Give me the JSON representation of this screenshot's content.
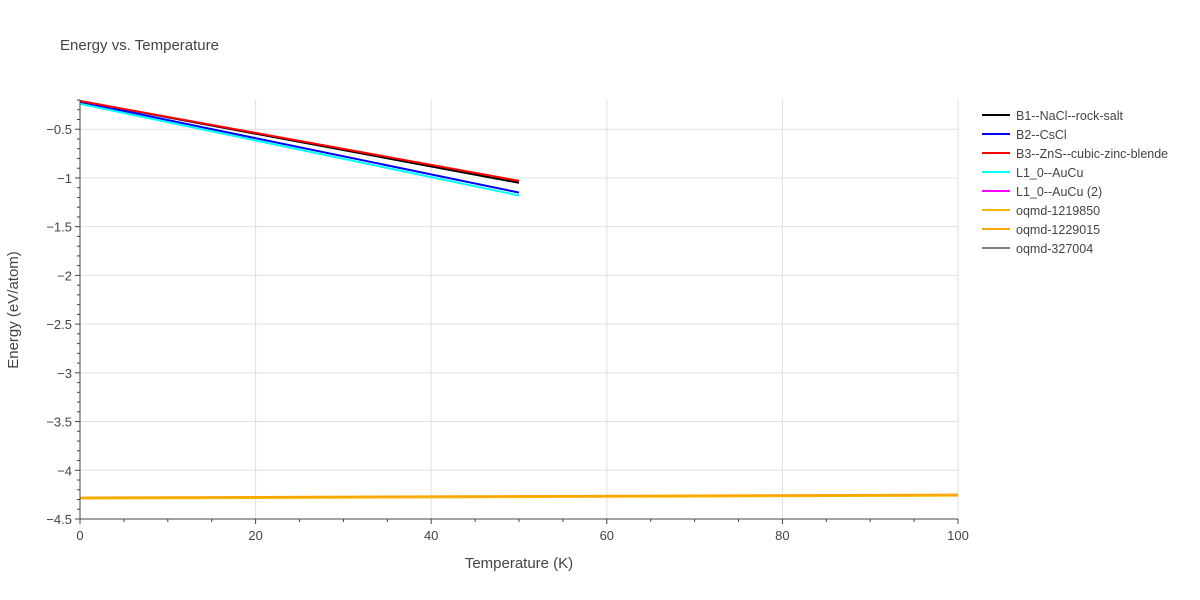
{
  "chart_data": {
    "type": "line",
    "title": "Energy vs. Temperature",
    "xlabel": "Temperature (K)",
    "ylabel": "Energy (eV/atom)",
    "xlim": [
      0,
      100
    ],
    "ylim": [
      -4.5,
      -0.2
    ],
    "x_ticks": [
      0,
      20,
      40,
      60,
      80,
      100
    ],
    "x_tick_labels": [
      "0",
      "20",
      "40",
      "60",
      "80",
      "100"
    ],
    "y_ticks": [
      -0.5,
      -1,
      -1.5,
      -2,
      -2.5,
      -3,
      -3.5,
      -4,
      -4.5
    ],
    "y_tick_labels": [
      "−0.5",
      "−1",
      "−1.5",
      "−2",
      "−2.5",
      "−3",
      "−3.5",
      "−4",
      "−4.5"
    ],
    "grid": true,
    "legend_position": "right",
    "series": [
      {
        "name": "B1--NaCl--rock-salt",
        "color": "#000000",
        "x": [
          0,
          50
        ],
        "y": [
          -0.21,
          -1.05
        ]
      },
      {
        "name": "B2--CsCl",
        "color": "#0000ff",
        "x": [
          0,
          50
        ],
        "y": [
          -0.22,
          -1.15
        ]
      },
      {
        "name": "B3--ZnS--cubic-zinc-blende",
        "color": "#ff0000",
        "x": [
          0,
          50
        ],
        "y": [
          -0.21,
          -1.03
        ]
      },
      {
        "name": "L1_0--AuCu",
        "color": "#00ffff",
        "x": [
          0,
          50
        ],
        "y": [
          -0.24,
          -1.18
        ]
      },
      {
        "name": "L1_0--AuCu (2)",
        "color": "#ff00ff",
        "x": [],
        "y": []
      },
      {
        "name": "oqmd-1219850",
        "color": "#f5b700",
        "x": [
          0,
          100
        ],
        "y": [
          -4.29,
          -4.26
        ]
      },
      {
        "name": "oqmd-1229015",
        "color": "#ffa500",
        "x": [
          0,
          100
        ],
        "y": [
          -4.28,
          -4.25
        ]
      },
      {
        "name": "oqmd-327004",
        "color": "#808080",
        "x": [],
        "y": []
      }
    ]
  }
}
